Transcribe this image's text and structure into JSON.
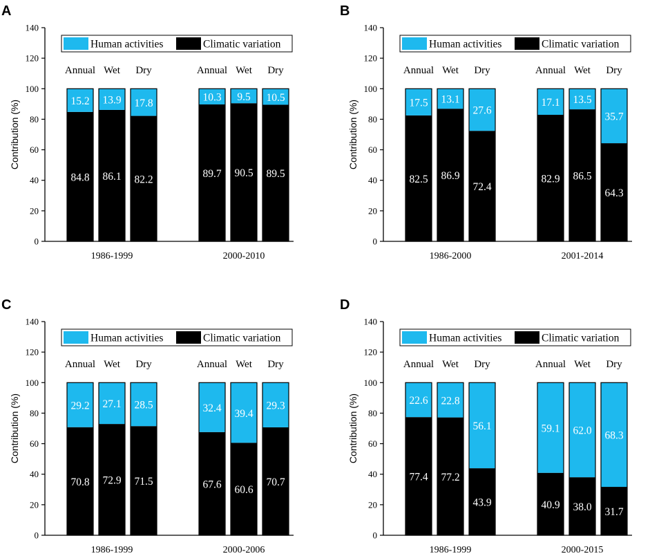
{
  "colors": {
    "human": "#1EB9EE",
    "climatic": "#000000"
  },
  "legend": {
    "human": "Human activities",
    "climatic": "Climatic variation"
  },
  "chart_data": [
    {
      "type": "bar",
      "panel": "A",
      "stacked": true,
      "ylabel": "Contribution (%)",
      "ylim": [
        0,
        140
      ],
      "yticks": [
        "0",
        "20",
        "40",
        "60",
        "80",
        "100",
        "120",
        "140"
      ],
      "subcategories": [
        "Annual",
        "Wet",
        "Dry"
      ],
      "groups": [
        "1986-1999",
        "2000-2010"
      ],
      "series": [
        {
          "name": "Climatic variation",
          "values": [
            [
              "84.8",
              "86.1",
              "82.2"
            ],
            [
              "89.7",
              "90.5",
              "89.5"
            ]
          ]
        },
        {
          "name": "Human activities",
          "values": [
            [
              "15.2",
              "13.9",
              "17.8"
            ],
            [
              "10.3",
              "9.5",
              "10.5"
            ]
          ]
        }
      ]
    },
    {
      "type": "bar",
      "panel": "B",
      "stacked": true,
      "ylabel": "Contribution (%)",
      "ylim": [
        0,
        140
      ],
      "yticks": [
        "0",
        "20",
        "40",
        "60",
        "80",
        "100",
        "120",
        "140"
      ],
      "subcategories": [
        "Annual",
        "Wet",
        "Dry"
      ],
      "groups": [
        "1986-2000",
        "2001-2014"
      ],
      "series": [
        {
          "name": "Climatic variation",
          "values": [
            [
              "82.5",
              "86.9",
              "72.4"
            ],
            [
              "82.9",
              "86.5",
              "64.3"
            ]
          ]
        },
        {
          "name": "Human activities",
          "values": [
            [
              "17.5",
              "13.1",
              "27.6"
            ],
            [
              "17.1",
              "13.5",
              "35.7"
            ]
          ]
        }
      ]
    },
    {
      "type": "bar",
      "panel": "C",
      "stacked": true,
      "ylabel": "Contribution (%)",
      "ylim": [
        0,
        140
      ],
      "yticks": [
        "0",
        "20",
        "40",
        "60",
        "80",
        "100",
        "120",
        "140"
      ],
      "subcategories": [
        "Annual",
        "Wet",
        "Dry"
      ],
      "groups": [
        "1986-1999",
        "2000-2006"
      ],
      "series": [
        {
          "name": "Climatic variation",
          "values": [
            [
              "70.8",
              "72.9",
              "71.5"
            ],
            [
              "67.6",
              "60.6",
              "70.7"
            ]
          ]
        },
        {
          "name": "Human activities",
          "values": [
            [
              "29.2",
              "27.1",
              "28.5"
            ],
            [
              "32.4",
              "39.4",
              "29.3"
            ]
          ]
        }
      ]
    },
    {
      "type": "bar",
      "panel": "D",
      "stacked": true,
      "ylabel": "Contribution (%)",
      "ylim": [
        0,
        140
      ],
      "yticks": [
        "0",
        "20",
        "40",
        "60",
        "80",
        "100",
        "120",
        "140"
      ],
      "subcategories": [
        "Annual",
        "Wet",
        "Dry"
      ],
      "groups": [
        "1986-1999",
        "2000-2015"
      ],
      "series": [
        {
          "name": "Climatic variation",
          "values": [
            [
              "77.4",
              "77.2",
              "43.9"
            ],
            [
              "40.9",
              "38.0",
              "31.7"
            ]
          ]
        },
        {
          "name": "Human activities",
          "values": [
            [
              "22.6",
              "22.8",
              "56.1"
            ],
            [
              "59.1",
              "62.0",
              "68.3"
            ]
          ]
        }
      ]
    }
  ]
}
